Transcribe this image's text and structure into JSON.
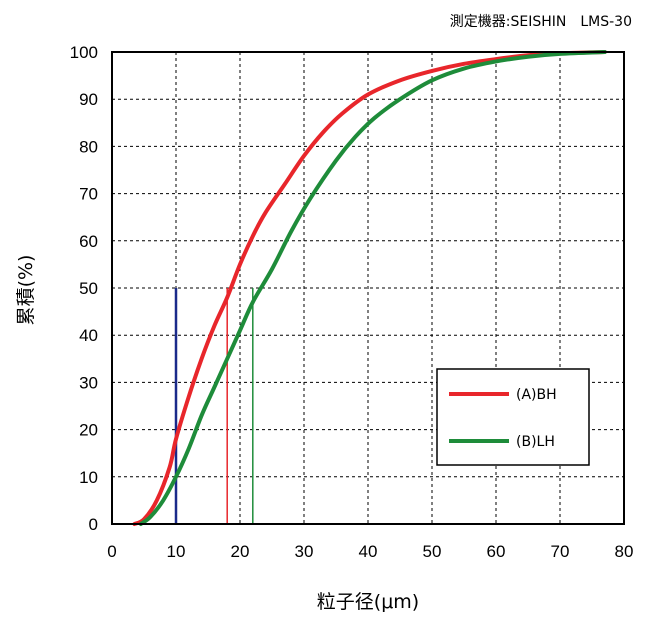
{
  "chart_data": {
    "type": "line",
    "annotation": "測定機器:SEISHIN　LMS-30",
    "xlabel": "粒子径(μm)",
    "ylabel": "累積(%)",
    "xlim": [
      0,
      80
    ],
    "ylim": [
      0,
      100
    ],
    "xticks": [
      0,
      10,
      20,
      30,
      40,
      50,
      60,
      70,
      80
    ],
    "yticks": [
      0,
      10,
      20,
      30,
      40,
      50,
      60,
      70,
      80,
      90,
      100
    ],
    "grid": true,
    "grid_style": "dashed",
    "legend_position": "bottom-right",
    "series": [
      {
        "name": "(A)BH",
        "color": "#e8262b",
        "x": [
          3.5,
          5,
          7,
          9,
          10,
          12,
          14,
          16,
          18,
          20,
          22,
          24,
          27,
          30,
          33,
          36,
          40,
          45,
          50,
          55,
          60,
          65,
          70,
          77
        ],
        "y": [
          0,
          1,
          5,
          12,
          18,
          27,
          35,
          42,
          48,
          55,
          61,
          66,
          72,
          78,
          83,
          87,
          91,
          94,
          96,
          97.5,
          98.5,
          99.3,
          99.7,
          100
        ]
      },
      {
        "name": "(B)LH",
        "color": "#1e8c3a",
        "x": [
          4.5,
          6,
          8,
          10,
          12,
          14,
          16,
          18,
          20,
          22,
          25,
          28,
          31,
          35,
          38,
          41,
          45,
          50,
          55,
          60,
          65,
          70,
          77
        ],
        "y": [
          0,
          1.5,
          5,
          10,
          16,
          23,
          29,
          35,
          41,
          47,
          54,
          62,
          69,
          77,
          82,
          86,
          90,
          94,
          96.5,
          98,
          99,
          99.6,
          100
        ]
      }
    ],
    "markers": [
      {
        "x": 10,
        "y_to": 50,
        "color": "#1a2a8a"
      },
      {
        "x": 18,
        "y_to": 50,
        "color": "#e8262b"
      },
      {
        "x": 22,
        "y_to": 50,
        "color": "#1e8c3a"
      }
    ]
  }
}
